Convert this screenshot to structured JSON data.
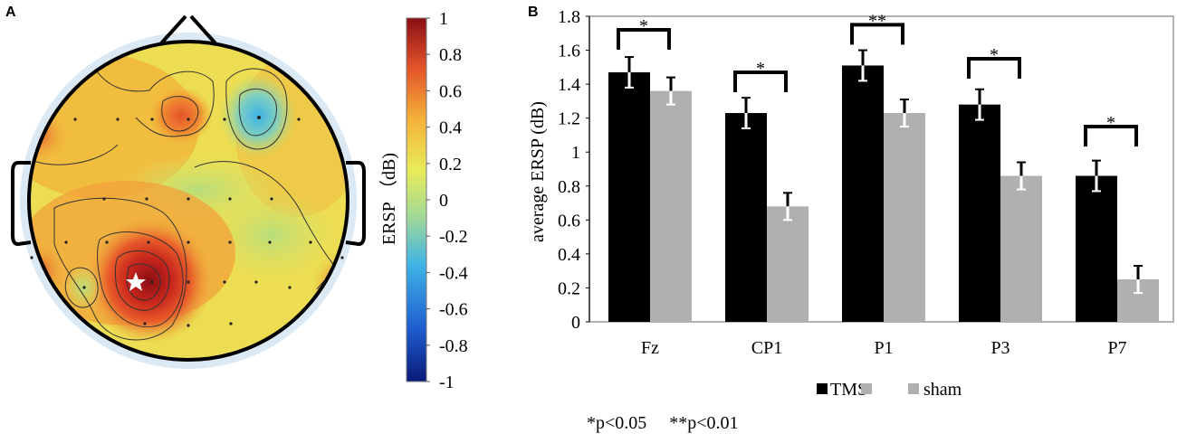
{
  "panel_a": {
    "label": "A",
    "colorbar": {
      "title": "ERSP （dB)",
      "ticks": [
        "1",
        "0.8",
        "0.6",
        "0.4",
        "0.2",
        "0",
        "-0.2",
        "-0.4",
        "-0.6",
        "-0.8",
        "-1"
      ],
      "range": [
        -1,
        1
      ],
      "colors": [
        "#0a1a7a",
        "#1f5fd0",
        "#3fb3e6",
        "#9fd89a",
        "#e8ec5a",
        "#f4b23a",
        "#e4552a",
        "#8a0e14"
      ]
    }
  },
  "chart_data": {
    "type": "bar",
    "panel_label": "B",
    "title": "",
    "xlabel": "",
    "ylabel": "average  ERSP  (dB)",
    "ylim": [
      0,
      1.8
    ],
    "yticks": [
      "0",
      "0.2",
      "0.4",
      "0.6",
      "0.8",
      "1",
      "1.2",
      "1.4",
      "1.6",
      "1.8"
    ],
    "categories": [
      "Fz",
      "CP1",
      "P1",
      "P3",
      "P7"
    ],
    "series": [
      {
        "name": "TMS",
        "color": "#000000",
        "values": [
          1.47,
          1.23,
          1.51,
          1.28,
          0.86
        ],
        "errors": [
          0.09,
          0.09,
          0.09,
          0.09,
          0.09
        ]
      },
      {
        "name": "sham",
        "color": "#b0b0b0",
        "values": [
          1.36,
          0.68,
          1.23,
          0.86,
          0.25
        ],
        "errors": [
          0.08,
          0.08,
          0.08,
          0.08,
          0.08
        ]
      }
    ],
    "significance": [
      "*",
      "*",
      "**",
      "*",
      "*"
    ],
    "sig_y": [
      1.72,
      1.47,
      1.75,
      1.55,
      1.15
    ],
    "legend_position": "bottom",
    "footnote": "*p<0.05     **p<0.01"
  }
}
